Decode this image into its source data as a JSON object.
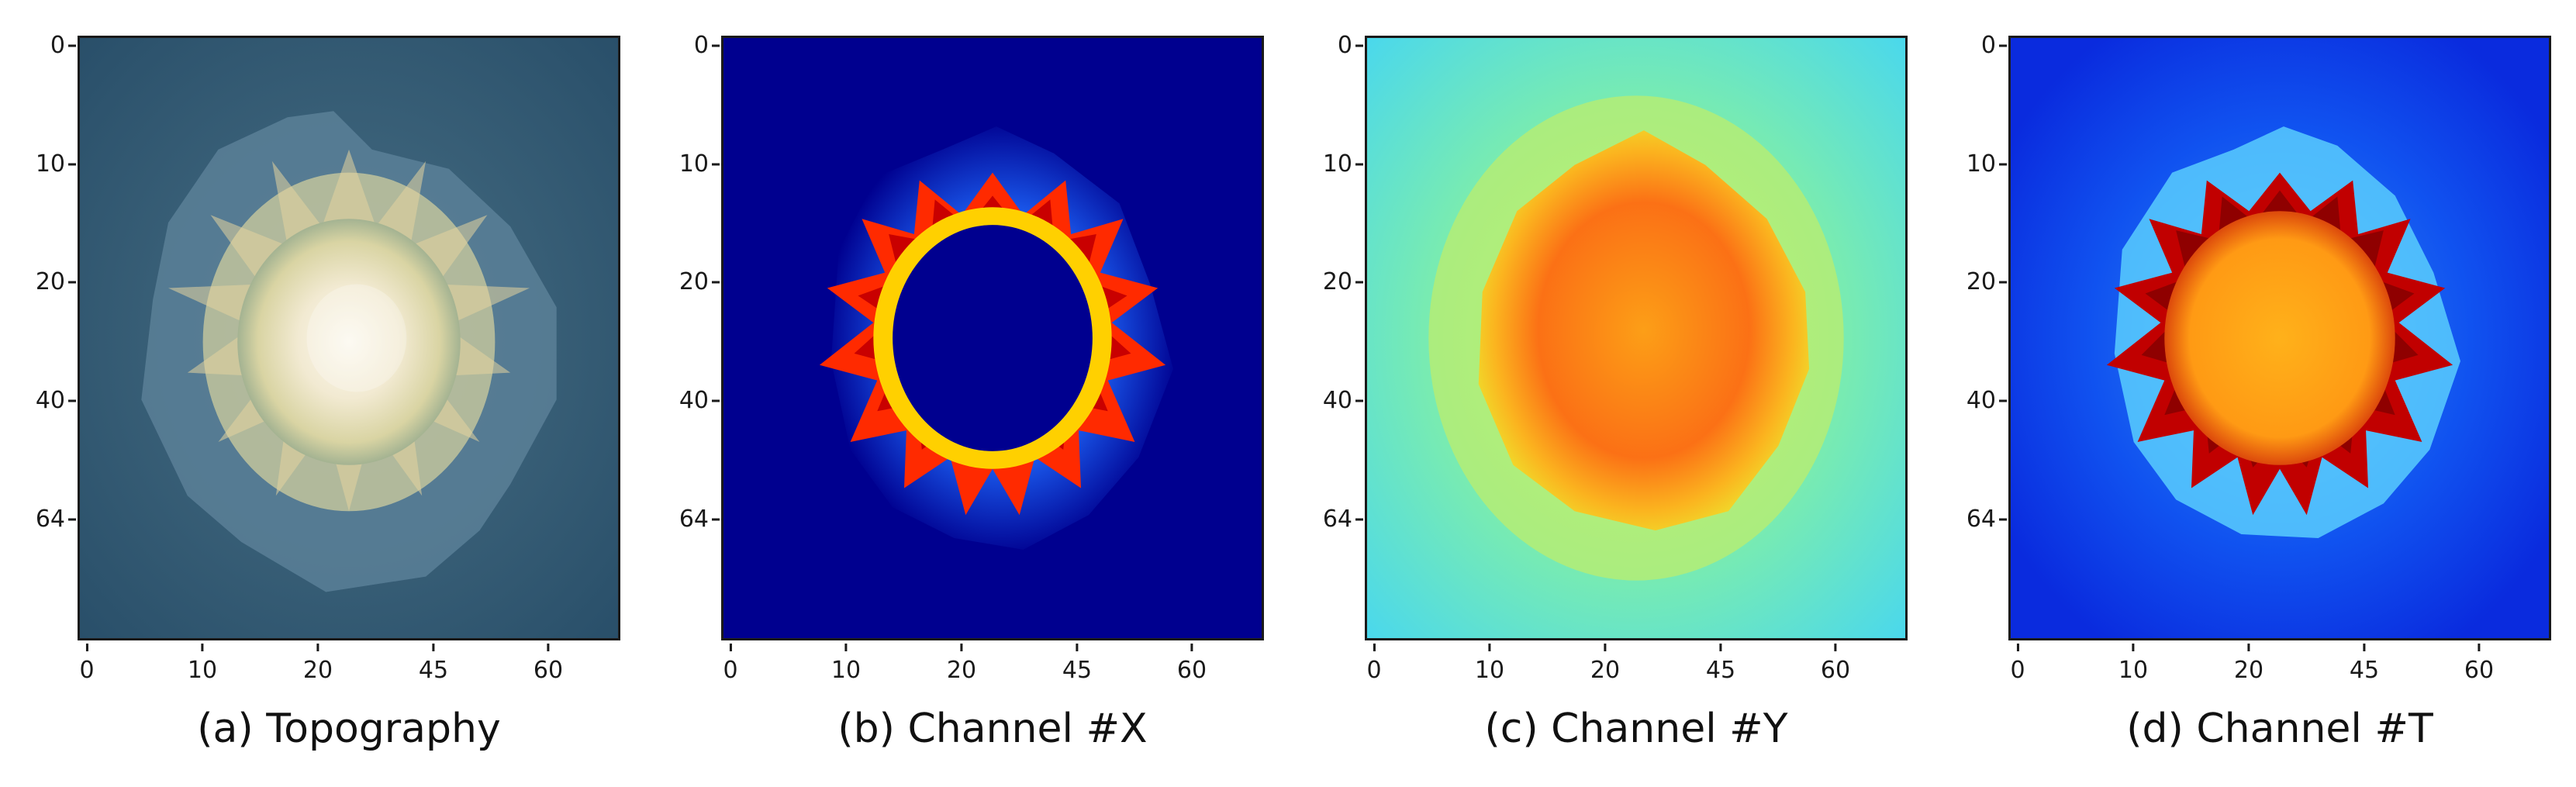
{
  "chart_data": [
    {
      "type": "heatmap",
      "title": "(a) Topography",
      "xticks": [
        "0",
        "10",
        "20",
        "45",
        "60"
      ],
      "yticks": [
        "0",
        "10",
        "20",
        "40",
        "64"
      ],
      "colormap": [
        "#2f5873",
        "#4f7f96",
        "#bfd0bf",
        "#f2ead2",
        "#fbf8ee"
      ]
    },
    {
      "type": "heatmap",
      "title": "(b) Channel #X",
      "xticks": [
        "0",
        "10",
        "20",
        "45",
        "60"
      ],
      "yticks": [
        "0",
        "10",
        "20",
        "40",
        "64"
      ],
      "colormap": [
        "#00008f",
        "#1f6bff",
        "#42e6ff",
        "#ffd000",
        "#c90000"
      ]
    },
    {
      "type": "heatmap",
      "title": "(c) Channel #Y",
      "xticks": [
        "0",
        "10",
        "20",
        "45",
        "60"
      ],
      "yticks": [
        "0",
        "10",
        "20",
        "40",
        "64"
      ],
      "colormap": [
        "#48d7ef",
        "#8cf08f",
        "#f0e52a",
        "#ff8f12",
        "#ff5a0b"
      ]
    },
    {
      "type": "heatmap",
      "title": "(d) Channel #T",
      "xticks": [
        "0",
        "10",
        "20",
        "45",
        "60"
      ],
      "yticks": [
        "0",
        "10",
        "20",
        "40",
        "64"
      ],
      "colormap": [
        "#0a2bde",
        "#1674ff",
        "#58d9ff",
        "#ffb11a",
        "#a90000"
      ]
    }
  ]
}
